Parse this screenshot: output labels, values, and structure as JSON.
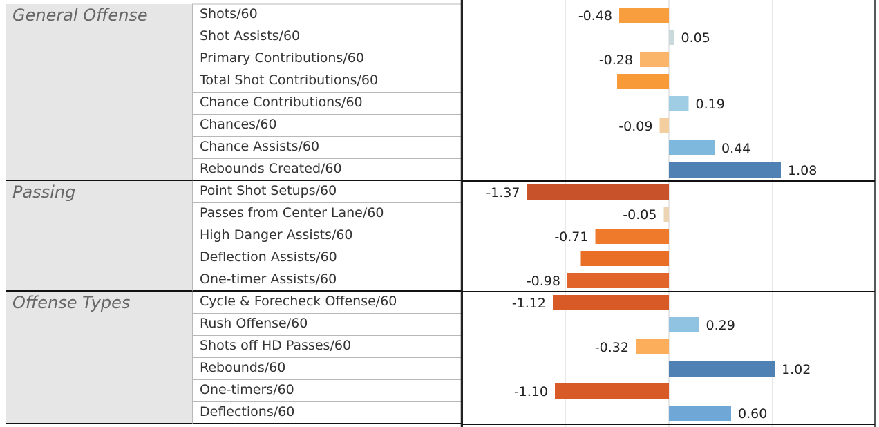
{
  "chart_data": {
    "type": "bar",
    "orientation": "horizontal",
    "xlim": [
      -1.37,
      2.0
    ],
    "grid": true,
    "groups": [
      {
        "name": "General Offense",
        "items": [
          {
            "label": "Shots/60",
            "value": -0.48,
            "value_label": "-0.48",
            "color": "#f89e3f"
          },
          {
            "label": "Shot Assists/60",
            "value": 0.05,
            "value_label": "0.05",
            "color": "#c9d9dc"
          },
          {
            "label": "Primary Contributions/60",
            "value": -0.28,
            "value_label": "-0.28",
            "color": "#fbb56a"
          },
          {
            "label": "Total Shot Contributions/60",
            "value": -0.5,
            "value_label": "",
            "color": "#f89a38"
          },
          {
            "label": "Chance Contributions/60",
            "value": 0.19,
            "value_label": "0.19",
            "color": "#9fcde4"
          },
          {
            "label": "Chances/60",
            "value": -0.09,
            "value_label": "-0.09",
            "color": "#f3cfa0"
          },
          {
            "label": "Chance Assists/60",
            "value": 0.44,
            "value_label": "0.44",
            "color": "#7fb8dd"
          },
          {
            "label": "Rebounds Created/60",
            "value": 1.08,
            "value_label": "1.08",
            "color": "#4f81b4"
          }
        ]
      },
      {
        "name": "Passing",
        "items": [
          {
            "label": "Point Shot Setups/60",
            "value": -1.37,
            "value_label": "-1.37",
            "color": "#c8522a"
          },
          {
            "label": "Passes from Center Lane/60",
            "value": -0.05,
            "value_label": "-0.05",
            "color": "#ecd4b4"
          },
          {
            "label": "High Danger Assists/60",
            "value": -0.71,
            "value_label": "-0.71",
            "color": "#f07a2c"
          },
          {
            "label": "Deflection Assists/60",
            "value": -0.85,
            "value_label": "",
            "color": "#e96f27"
          },
          {
            "label": "One-timer Assists/60",
            "value": -0.98,
            "value_label": "-0.98",
            "color": "#e1642a"
          }
        ]
      },
      {
        "name": "Offense Types",
        "items": [
          {
            "label": "Cycle & Forecheck Offense/60",
            "value": -1.12,
            "value_label": "-1.12",
            "color": "#d85a27"
          },
          {
            "label": "Rush Offense/60",
            "value": 0.29,
            "value_label": "0.29",
            "color": "#90c3e1"
          },
          {
            "label": "Shots off HD Passes/60",
            "value": -0.32,
            "value_label": "-0.32",
            "color": "#fcae5a"
          },
          {
            "label": "Rebounds/60",
            "value": 1.02,
            "value_label": "1.02",
            "color": "#4f81b4"
          },
          {
            "label": "One-timers/60",
            "value": -1.1,
            "value_label": "-1.10",
            "color": "#d85a27"
          },
          {
            "label": "Deflections/60",
            "value": 0.6,
            "value_label": "0.60",
            "color": "#6fa8d6"
          }
        ]
      }
    ]
  }
}
